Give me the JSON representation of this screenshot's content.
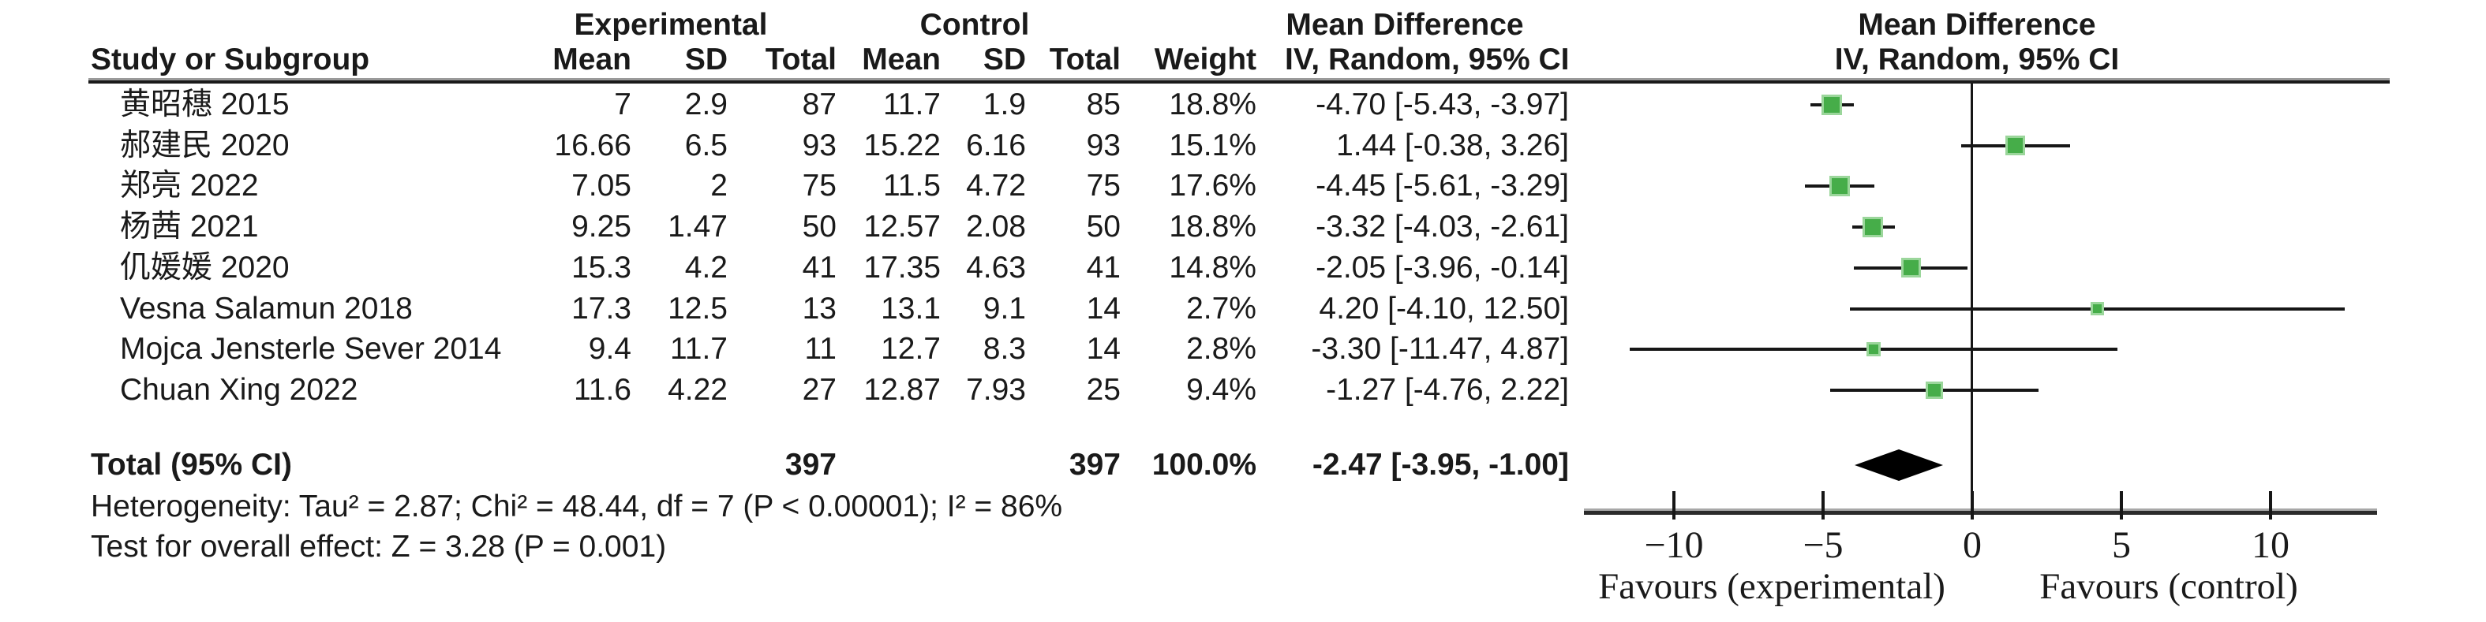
{
  "chart_data": {
    "type": "scatter",
    "subtype": "forest-plot-meta-analysis",
    "effect_measure": "Mean Difference",
    "method_label": "IV, Random, 95% CI",
    "group_headers": {
      "experimental": "Experimental",
      "control": "Control",
      "md_text_col": "Mean Difference",
      "md_plot_col": "Mean Difference"
    },
    "column_headers": {
      "study": "Study or Subgroup",
      "exp_mean": "Mean",
      "exp_sd": "SD",
      "exp_total": "Total",
      "ctrl_mean": "Mean",
      "ctrl_sd": "SD",
      "ctrl_total": "Total",
      "weight": "Weight",
      "ci_text": "IV, Random, 95% CI",
      "ci_plot": "IV, Random, 95% CI"
    },
    "studies": [
      {
        "name": "黄昭穗 2015",
        "exp_mean": "7",
        "exp_sd": "2.9",
        "exp_total": "87",
        "ctrl_mean": "11.7",
        "ctrl_sd": "1.9",
        "ctrl_total": "85",
        "weight": "18.8%",
        "ci_text": "-4.70 [-5.43, -3.97]",
        "md": -4.7,
        "lo": -5.43,
        "hi": -3.97,
        "weight_pct": 18.8
      },
      {
        "name": "郝建民 2020",
        "exp_mean": "16.66",
        "exp_sd": "6.5",
        "exp_total": "93",
        "ctrl_mean": "15.22",
        "ctrl_sd": "6.16",
        "ctrl_total": "93",
        "weight": "15.1%",
        "ci_text": "1.44 [-0.38, 3.26]",
        "md": 1.44,
        "lo": -0.38,
        "hi": 3.26,
        "weight_pct": 15.1
      },
      {
        "name": "郑亮 2022",
        "exp_mean": "7.05",
        "exp_sd": "2",
        "exp_total": "75",
        "ctrl_mean": "11.5",
        "ctrl_sd": "4.72",
        "ctrl_total": "75",
        "weight": "17.6%",
        "ci_text": "-4.45 [-5.61, -3.29]",
        "md": -4.45,
        "lo": -5.61,
        "hi": -3.29,
        "weight_pct": 17.6
      },
      {
        "name": "杨茜 2021",
        "exp_mean": "9.25",
        "exp_sd": "1.47",
        "exp_total": "50",
        "ctrl_mean": "12.57",
        "ctrl_sd": "2.08",
        "ctrl_total": "50",
        "weight": "18.8%",
        "ci_text": "-3.32 [-4.03, -2.61]",
        "md": -3.32,
        "lo": -4.03,
        "hi": -2.61,
        "weight_pct": 18.8
      },
      {
        "name": "仉媛媛 2020",
        "exp_mean": "15.3",
        "exp_sd": "4.2",
        "exp_total": "41",
        "ctrl_mean": "17.35",
        "ctrl_sd": "4.63",
        "ctrl_total": "41",
        "weight": "14.8%",
        "ci_text": "-2.05 [-3.96, -0.14]",
        "md": -2.05,
        "lo": -3.96,
        "hi": -0.14,
        "weight_pct": 14.8
      },
      {
        "name": "Vesna Salamun 2018",
        "exp_mean": "17.3",
        "exp_sd": "12.5",
        "exp_total": "13",
        "ctrl_mean": "13.1",
        "ctrl_sd": "9.1",
        "ctrl_total": "14",
        "weight": "2.7%",
        "ci_text": "4.20 [-4.10, 12.50]",
        "md": 4.2,
        "lo": -4.1,
        "hi": 12.5,
        "weight_pct": 2.7
      },
      {
        "name": "Mojca Jensterle Sever 2014",
        "exp_mean": "9.4",
        "exp_sd": "11.7",
        "exp_total": "11",
        "ctrl_mean": "12.7",
        "ctrl_sd": "8.3",
        "ctrl_total": "14",
        "weight": "2.8%",
        "ci_text": "-3.30 [-11.47, 4.87]",
        "md": -3.3,
        "lo": -11.47,
        "hi": 4.87,
        "weight_pct": 2.8
      },
      {
        "name": "Chuan Xing 2022",
        "exp_mean": "11.6",
        "exp_sd": "4.22",
        "exp_total": "27",
        "ctrl_mean": "12.87",
        "ctrl_sd": "7.93",
        "ctrl_total": "25",
        "weight": "9.4%",
        "ci_text": "-1.27 [-4.76, 2.22]",
        "md": -1.27,
        "lo": -4.76,
        "hi": 2.22,
        "weight_pct": 9.4
      }
    ],
    "total": {
      "label": "Total (95% CI)",
      "exp_total": "397",
      "ctrl_total": "397",
      "weight": "100.0%",
      "ci_text": "-2.47 [-3.95, -1.00]",
      "md": -2.47,
      "lo": -3.95,
      "hi": -1.0
    },
    "heterogeneity": "Heterogeneity: Tau² = 2.87; Chi² = 48.44, df = 7 (P < 0.00001); I² = 86%",
    "overall_effect": "Test for overall effect: Z = 3.28 (P = 0.001)",
    "axis": {
      "ticks": [
        -10,
        -5,
        0,
        5,
        10
      ],
      "tick_labels": [
        "−10",
        "−5",
        "0",
        "5",
        "10"
      ],
      "min": -13,
      "max": 13.5,
      "favours_left": "Favours (experimental)",
      "favours_right": "Favours (control)"
    },
    "colors": {
      "square": "#46ad49",
      "square_halo": "#9bd69b",
      "line": "#161616",
      "diamond": "#000000"
    }
  }
}
